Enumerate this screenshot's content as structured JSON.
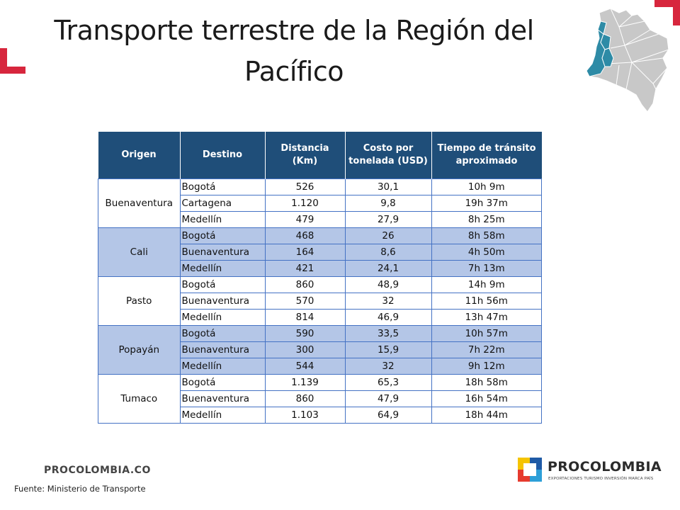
{
  "title": {
    "line1": "Transporte terrestre de la Región del",
    "line2": "Pacífico"
  },
  "table": {
    "headers": {
      "origen": "Origen",
      "destino": "Destino",
      "distancia_1": "Distancia",
      "distancia_2": "(Km)",
      "costo_1": "Costo por",
      "costo_2": "tonelada (USD)",
      "tiempo_1": "Tiempo de tránsito",
      "tiempo_2": "aproximado"
    },
    "groups": [
      {
        "origin": "Buenaventura",
        "rows": [
          {
            "dest": "Bogotá",
            "dist": "526",
            "cost": "30,1",
            "time": "10h 9m"
          },
          {
            "dest": "Cartagena",
            "dist": "1.120",
            "cost": "9,8",
            "time": "19h 37m"
          },
          {
            "dest": "Medellín",
            "dist": "479",
            "cost": "27,9",
            "time": "8h 25m"
          }
        ]
      },
      {
        "origin": "Cali",
        "rows": [
          {
            "dest": "Bogotá",
            "dist": "468",
            "cost": "26",
            "time": "8h 58m"
          },
          {
            "dest": "Buenaventura",
            "dist": "164",
            "cost": "8,6",
            "time": "4h 50m"
          },
          {
            "dest": "Medellín",
            "dist": "421",
            "cost": "24,1",
            "time": "7h 13m"
          }
        ]
      },
      {
        "origin": "Pasto",
        "rows": [
          {
            "dest": "Bogotá",
            "dist": "860",
            "cost": "48,9",
            "time": "14h 9m"
          },
          {
            "dest": "Buenaventura",
            "dist": "570",
            "cost": "32",
            "time": "11h 56m"
          },
          {
            "dest": "Medellín",
            "dist": "814",
            "cost": "46,9",
            "time": "13h 47m"
          }
        ]
      },
      {
        "origin": "Popayán",
        "rows": [
          {
            "dest": "Bogotá",
            "dist": "590",
            "cost": "33,5",
            "time": "10h 57m"
          },
          {
            "dest": "Buenaventura",
            "dist": "300",
            "cost": "15,9",
            "time": "7h 22m"
          },
          {
            "dest": "Medellín",
            "dist": "544",
            "cost": "32",
            "time": "9h 12m"
          }
        ]
      },
      {
        "origin": "Tumaco",
        "rows": [
          {
            "dest": "Bogotá",
            "dist": "1.139",
            "cost": "65,3",
            "time": "18h 58m"
          },
          {
            "dest": "Buenaventura",
            "dist": "860",
            "cost": "47,9",
            "time": "16h 54m"
          },
          {
            "dest": "Medellín",
            "dist": "1.103",
            "cost": "64,9",
            "time": "18h 44m"
          }
        ]
      }
    ]
  },
  "footer": {
    "brand_url": "PROCOLOMBIA.CO",
    "source": "Fuente: Ministerio de Transporte"
  },
  "logo": {
    "name": "PROCOLOMBIA",
    "tagline": "EXPORTACIONES TURISMO INVERSIÓN MARCA PAÍS"
  },
  "colors": {
    "header_bg": "#1f4e79",
    "row_shade": "#b4c6e7",
    "accent_red": "#d7263d",
    "map_highlight": "#2e8ba6",
    "map_base": "#c8c8c8"
  }
}
